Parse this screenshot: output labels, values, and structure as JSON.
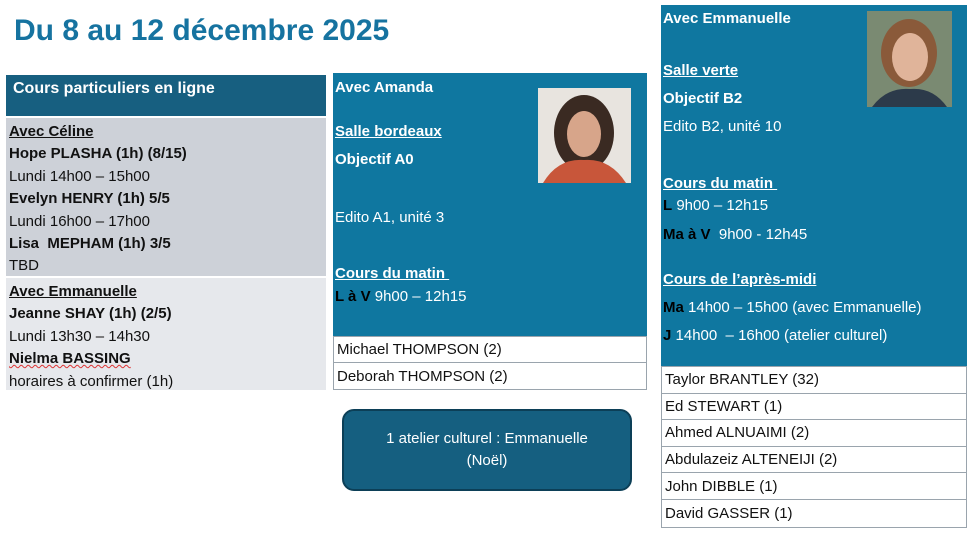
{
  "title": "Du 8 au 12 décembre 2025",
  "private": {
    "header": "Cours particuliers en ligne",
    "celine": {
      "teacher": "Avec Céline",
      "lines": [
        {
          "name": "Hope PLASHA (1h) (8/15)",
          "time": "Lundi 14h00 – 15h00"
        },
        {
          "name": "Evelyn HENRY (1h) 5/5",
          "time": "Lundi 16h00 – 17h00"
        },
        {
          "name": "Lisa  MEPHAM (1h) 3/5",
          "time": "TBD"
        }
      ]
    },
    "emmanuelle": {
      "teacher": "Avec Emmanuelle",
      "lines": [
        {
          "name": "Jeanne SHAY (1h) (2/5)",
          "time": "Lundi 13h30 – 14h30"
        },
        {
          "name": "Nielma BASSING",
          "time": "horaires à confirmer (1h)"
        }
      ]
    }
  },
  "amanda": {
    "teacher": "Avec Amanda",
    "room": "Salle bordeaux",
    "objective": "Objectif A0",
    "book": "Edito A1, unité 3",
    "morning_title": "Cours du matin ",
    "morning": [
      {
        "days": "L à V",
        "time": " 9h00 – 12h15"
      }
    ],
    "students": [
      "Michael THOMPSON (2)",
      "Deborah THOMPSON (2)"
    ]
  },
  "callout": {
    "line1": "1 atelier culturel : Emmanuelle",
    "line2": "(Noël)"
  },
  "emmanuelle": {
    "teacher": "Avec Emmanuelle",
    "room": "Salle verte",
    "objective": "Objectif B2",
    "book": "Edito B2, unité 10",
    "morning_title": "Cours du matin ",
    "morning": [
      {
        "days": "L",
        "time": " 9h00 – 12h15"
      },
      {
        "days": "Ma à V",
        "time": "  9h00 - 12h45"
      }
    ],
    "afternoon_title": "Cours de l’après-midi",
    "afternoon": [
      {
        "days": "Ma",
        "time": " 14h00 – 15h00 (avec Emmanuelle)"
      },
      {
        "days": "J",
        "time": " 14h00  – 16h00 (atelier culturel)"
      }
    ],
    "students": [
      "Taylor BRANTLEY (32)",
      "Ed STEWART (1)",
      "Ahmed ALNUAIMI (2)",
      "Abdulazeiz ALTENEIJI (2)",
      "John DIBBLE (1)",
      "David GASSER (1)"
    ]
  },
  "colors": {
    "title": "#1673a0",
    "panel": "#0f77a0",
    "header": "#175f80"
  }
}
